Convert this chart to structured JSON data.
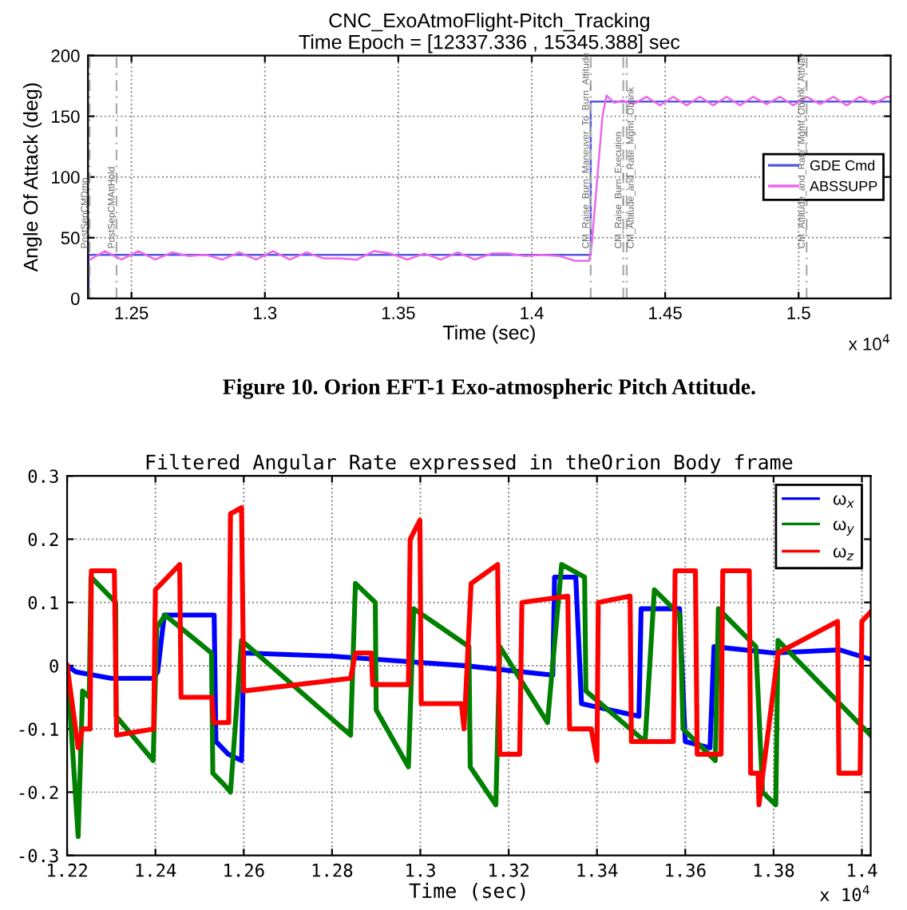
{
  "chart_data": [
    {
      "type": "line",
      "title": "CNC_ExoAtmoFlight-Pitch_Tracking",
      "subtitle": "Time Epoch = [12337.336 , 15345.388] sec",
      "xlabel": "Time (sec)",
      "ylabel": "Angle Of Attack (deg)",
      "xlim": [
        1.2337,
        1.5345
      ],
      "ylim": [
        0,
        200
      ],
      "xticks": [
        1.25,
        1.3,
        1.35,
        1.4,
        1.45,
        1.5
      ],
      "yticks": [
        0,
        50,
        100,
        150,
        200
      ],
      "grid": true,
      "legend": "right",
      "series": [
        {
          "name": "GDE Cmd",
          "color": "#5555dd",
          "x": [
            1.2337,
            1.2339,
            1.2339,
            1.4221,
            1.4221,
            1.5345
          ],
          "values": [
            0,
            0,
            36,
            36,
            162,
            162
          ]
        },
        {
          "name": "ABSSUPP",
          "color": "#ee66ee",
          "x": [
            1.2337,
            1.24,
            1.2463,
            1.2526,
            1.2589,
            1.2652,
            1.2715,
            1.2778,
            1.2841,
            1.2904,
            1.2967,
            1.303,
            1.3093,
            1.3156,
            1.3219,
            1.3282,
            1.3345,
            1.3408,
            1.3471,
            1.3534,
            1.3597,
            1.366,
            1.3723,
            1.3786,
            1.3849,
            1.3912,
            1.3975,
            1.4038,
            1.4101,
            1.4164,
            1.4215,
            1.4225,
            1.4265,
            1.428,
            1.431,
            1.434,
            1.438,
            1.443,
            1.448,
            1.453,
            1.458,
            1.463,
            1.468,
            1.473,
            1.478,
            1.483,
            1.488,
            1.493,
            1.498,
            1.503,
            1.508,
            1.513,
            1.518,
            1.523,
            1.528,
            1.533,
            1.5345
          ],
          "values": [
            31,
            39,
            32,
            39,
            32,
            38,
            35,
            36,
            32,
            38,
            32,
            39,
            32,
            38,
            33,
            33,
            32,
            39,
            37,
            32,
            37,
            32,
            38,
            32,
            37,
            37,
            35,
            36,
            35,
            31,
            31,
            45,
            150,
            167,
            161,
            163,
            160,
            166,
            159,
            166,
            159,
            166,
            159,
            166,
            159,
            166,
            160,
            166,
            159,
            166,
            160,
            166,
            159,
            166,
            160,
            166,
            166
          ]
        }
      ],
      "ref_lines": [
        {
          "axis": "x",
          "value": 1.2343,
          "label": "PostSepCMDmp",
          "color": "#aaaaaa",
          "line_style": "dashed"
        },
        {
          "axis": "x",
          "value": 1.2444,
          "label": "PostSepCMAttHold",
          "color": "#aaaaaa",
          "line_style": "dashed"
        },
        {
          "axis": "x",
          "value": 1.4221,
          "label": "CM_Raise_Burn_Maneuver_To_Burn_Attitude",
          "color": "#aaaaaa",
          "line_style": "dashed"
        },
        {
          "axis": "x",
          "value": 1.4343,
          "label": "CM_Raise_Burn_Execution",
          "color": "#aaaaaa",
          "line_style": "dashed"
        },
        {
          "axis": "x",
          "value": 1.4356,
          "label": "CM_Attitude_and_Rate_Mgmt_Obank",
          "color": "#aaaaaa",
          "line_style": "dashed"
        },
        {
          "axis": "x",
          "value": 1.503,
          "label": "CM_Attitude_and_Rate_Mgmt_Obank_AttNav",
          "color": "#aaaaaa",
          "line_style": "dashed"
        }
      ],
      "annotations": [
        "x 10$^{4}$",
        "Figure 10. Orion EFT-1 Exo-atmospheric Pitch Attitude."
      ]
    },
    {
      "type": "line",
      "title": "Filtered Angular Rate expressed in theOrion Body frame",
      "xlabel": "Time (sec)",
      "xlim": [
        1.22,
        1.402
      ],
      "ylim": [
        -0.3,
        0.3
      ],
      "xticks": [
        1.22,
        1.24,
        1.26,
        1.28,
        1.3,
        1.32,
        1.34,
        1.36,
        1.38,
        1.4
      ],
      "yticks": [
        -0.3,
        -0.2,
        -0.1,
        0,
        0.1,
        0.2,
        0.3
      ],
      "grid": true,
      "legend": "top right",
      "series": [
        {
          "name": "ω$_{x}$",
          "color": "#0000ff",
          "x": [
            1.22,
            1.222,
            1.23,
            1.2395,
            1.2405,
            1.242,
            1.2533,
            1.2537,
            1.2565,
            1.2595,
            1.26,
            1.28,
            1.3,
            1.31,
            1.33,
            1.3304,
            1.3352,
            1.3365,
            1.3495,
            1.35,
            1.3587,
            1.36,
            1.3656,
            1.3665,
            1.38,
            1.395,
            1.402
          ],
          "values": [
            0,
            -0.01,
            -0.02,
            -0.02,
            -0.01,
            0.08,
            0.08,
            -0.12,
            -0.14,
            -0.15,
            0.02,
            0.015,
            0.005,
            0,
            -0.015,
            0.14,
            0.14,
            -0.06,
            -0.08,
            0.09,
            0.09,
            -0.12,
            -0.13,
            0.03,
            0.02,
            0.025,
            0.01
          ]
        },
        {
          "name": "ω$_{y}$",
          "color": "#008000",
          "x": [
            1.22,
            1.2225,
            1.2235,
            1.225,
            1.2254,
            1.231,
            1.2311,
            1.2395,
            1.2403,
            1.2422,
            1.2527,
            1.253,
            1.2558,
            1.257,
            1.2595,
            1.2842,
            1.2853,
            1.2898,
            1.29,
            1.2973,
            1.2985,
            1.311,
            1.3113,
            1.3171,
            1.318,
            1.3288,
            1.332,
            1.3372,
            1.3375,
            1.3509,
            1.353,
            1.3588,
            1.3595,
            1.3668,
            1.3675,
            1.376,
            1.3775,
            1.3805,
            1.381,
            1.402
          ],
          "values": [
            0,
            -0.27,
            -0.04,
            -0.05,
            0.14,
            0.1,
            -0.08,
            -0.15,
            0.06,
            0.08,
            0.02,
            -0.17,
            -0.19,
            -0.2,
            0.04,
            -0.11,
            0.13,
            0.1,
            -0.07,
            -0.16,
            0.09,
            0.03,
            -0.16,
            -0.22,
            0.03,
            -0.09,
            0.16,
            0.14,
            -0.04,
            -0.12,
            0.12,
            0.08,
            -0.1,
            -0.15,
            0.09,
            0.03,
            -0.2,
            -0.22,
            0.04,
            -0.11
          ]
        },
        {
          "name": "ω$_{z}$",
          "color": "#ff0000",
          "x": [
            1.22,
            1.2225,
            1.2235,
            1.2252,
            1.2255,
            1.2307,
            1.2312,
            1.2396,
            1.24,
            1.2455,
            1.2458,
            1.2528,
            1.2532,
            1.2566,
            1.257,
            1.2595,
            1.26,
            1.2842,
            1.2853,
            1.2889,
            1.2892,
            1.2973,
            1.2977,
            1.2999,
            1.3002,
            1.3093,
            1.3099,
            1.3115,
            1.3175,
            1.318,
            1.3225,
            1.323,
            1.3334,
            1.3338,
            1.3387,
            1.34,
            1.3403,
            1.3475,
            1.3478,
            1.3573,
            1.3577,
            1.3623,
            1.3627,
            1.3681,
            1.3685,
            1.3745,
            1.3748,
            1.3765,
            1.3767,
            1.381,
            1.3945,
            1.3948,
            1.3996,
            1.4,
            1.402
          ],
          "values": [
            0,
            -0.13,
            -0.1,
            -0.1,
            0.15,
            0.15,
            -0.11,
            -0.1,
            0.12,
            0.16,
            -0.05,
            -0.05,
            -0.09,
            -0.09,
            0.24,
            0.25,
            -0.04,
            -0.02,
            0.02,
            0.02,
            -0.03,
            -0.03,
            0.2,
            0.23,
            -0.06,
            -0.06,
            -0.1,
            0.13,
            0.16,
            -0.14,
            -0.14,
            0.1,
            0.11,
            -0.1,
            -0.1,
            -0.15,
            0.1,
            0.11,
            -0.12,
            -0.12,
            0.15,
            0.15,
            -0.14,
            -0.14,
            0.15,
            0.15,
            -0.17,
            -0.17,
            -0.22,
            0.02,
            0.07,
            -0.17,
            -0.17,
            0.07,
            0.085
          ]
        }
      ],
      "annotations": [
        "x 10$^{4}$"
      ]
    }
  ]
}
